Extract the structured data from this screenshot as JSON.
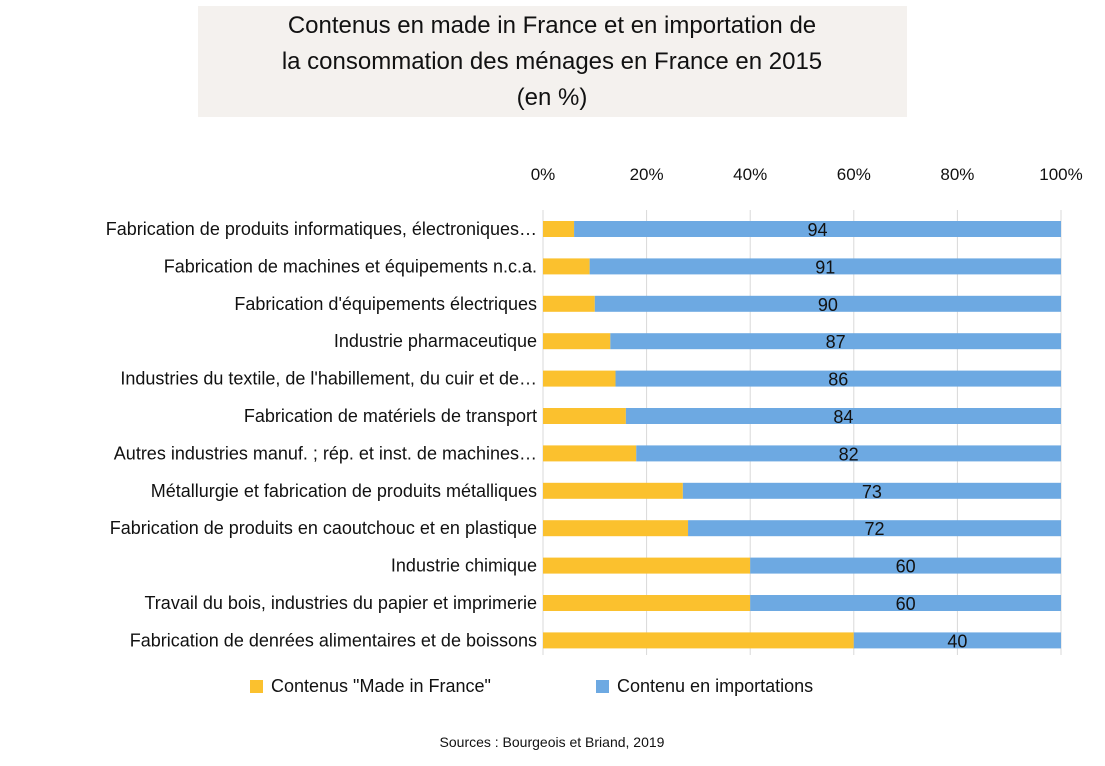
{
  "chart_data": {
    "type": "bar",
    "orientation": "horizontal",
    "stacked": "percent",
    "title_lines": [
      "Contenus en made in France et en importation de",
      "la consommation des ménages en France en 2015",
      "(en %)"
    ],
    "categories": [
      "Fabrication de produits informatiques, électroniques…",
      "Fabrication de machines et équipements n.c.a.",
      "Fabrication d'équipements électriques",
      "Industrie pharmaceutique",
      "Industries du textile, de l'habillement, du cuir et de…",
      "Fabrication de matériels de transport",
      "Autres industries manuf. ; rép. et inst. de machines…",
      "Métallurgie et fabrication de produits métalliques",
      "Fabrication de produits en caoutchouc et en plastique",
      "Industrie chimique",
      "Travail du bois, industries du papier et imprimerie",
      "Fabrication de denrées alimentaires et de boissons"
    ],
    "series": [
      {
        "name": "Contenus \"Made in France\"",
        "color": "#FBC12E",
        "values": [
          6,
          9,
          10,
          13,
          14,
          16,
          18,
          27,
          28,
          40,
          40,
          60
        ]
      },
      {
        "name": "Contenu en importations",
        "color": "#6DA9E2",
        "values": [
          94,
          91,
          90,
          87,
          86,
          84,
          82,
          73,
          72,
          60,
          60,
          40
        ]
      }
    ],
    "data_labels": [
      "94",
      "91",
      "90",
      "87",
      "86",
      "84",
      "82",
      "73",
      "72",
      "60",
      "60",
      "40"
    ],
    "xlim": [
      0,
      100
    ],
    "x_ticks": [
      "0%",
      "20%",
      "40%",
      "60%",
      "80%",
      "100%"
    ],
    "x_axis_position": "top",
    "grid": true,
    "legend_position": "bottom",
    "source": "Sources : Bourgeois et Briand, 2019"
  }
}
